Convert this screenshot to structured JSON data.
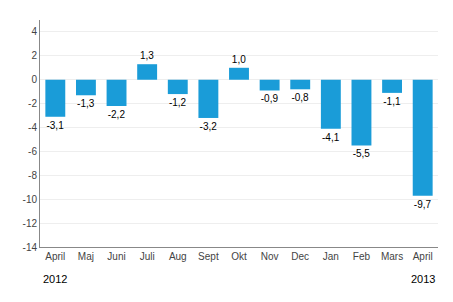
{
  "chart_data": {
    "type": "bar",
    "categories": [
      "April",
      "Maj",
      "Juni",
      "Juli",
      "Aug",
      "Sept",
      "Okt",
      "Nov",
      "Dec",
      "Jan",
      "Feb",
      "Mars",
      "April"
    ],
    "values": [
      -3.1,
      -1.3,
      -2.2,
      1.3,
      -1.2,
      -3.2,
      1.0,
      -0.9,
      -0.8,
      -4.1,
      -5.5,
      -1.1,
      -9.7
    ],
    "value_labels": [
      "-3,1",
      "-1,3",
      "-2,2",
      "1,3",
      "-1,2",
      "-3,2",
      "1,0",
      "-0,9",
      "-0,8",
      "-4,1",
      "-5,5",
      "-1,1",
      "-9,7"
    ],
    "data_labels": true,
    "color": "#1a9cd8",
    "ylim": [
      -14,
      5
    ],
    "yticks": [
      -14,
      -12,
      -10,
      -8,
      -6,
      -4,
      -2,
      0,
      2,
      4
    ],
    "grid": true,
    "annotations": [
      {
        "text": "2012",
        "index": 0
      },
      {
        "text": "2013",
        "index": 12
      }
    ]
  }
}
